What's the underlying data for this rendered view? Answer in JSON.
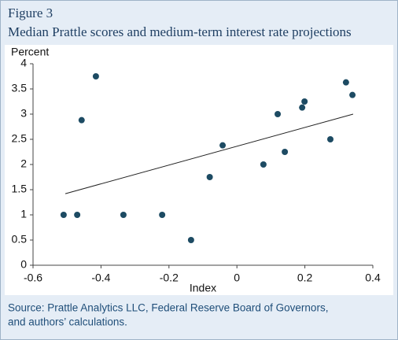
{
  "chart_data": {
    "type": "scatter",
    "figure_label": "Figure 3",
    "title": "Median Prattle scores and medium-term interest rate projections",
    "y_label": "Percent",
    "x_label": "Index",
    "source": [
      "Source: Prattle Analytics LLC, Federal Reserve Board of Governors,",
      "and authors’ calculations."
    ],
    "series": [
      {
        "color": "#1d4b63",
        "x": [
          -0.51,
          -0.47,
          -0.457,
          -0.415,
          -0.334,
          -0.22,
          -0.135,
          -0.08,
          -0.042,
          0.078,
          0.12,
          0.141,
          0.192,
          0.199,
          0.275,
          0.321,
          0.34
        ],
        "values": [
          1,
          1,
          2.88,
          3.75,
          1,
          1,
          0.5,
          1.75,
          2.38,
          2,
          3,
          2.25,
          3.13,
          3.25,
          2.5,
          3.63,
          3.38
        ]
      }
    ],
    "trend_line": {
      "color": "#222222",
      "x": [
        -0.505,
        0.342
      ],
      "values": [
        1.42,
        3.0
      ]
    },
    "xlim": [
      -0.6,
      0.4
    ],
    "xticks": [
      -0.6,
      -0.4,
      -0.2,
      0,
      0.2,
      0.4
    ],
    "ylim": [
      0,
      4
    ],
    "yticks": [
      0,
      0.5,
      1,
      1.5,
      2,
      2.5,
      3,
      3.5,
      4
    ]
  }
}
